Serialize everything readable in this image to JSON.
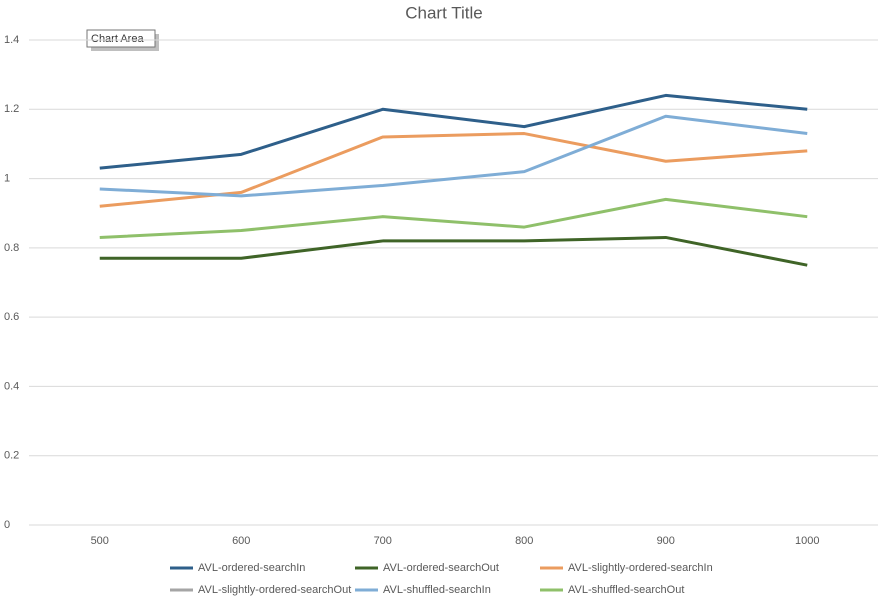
{
  "chart_data": {
    "type": "line",
    "title": "Chart Title",
    "tooltip": "Chart Area",
    "categories": [
      "500",
      "600",
      "700",
      "800",
      "900",
      "1000"
    ],
    "series": [
      {
        "name": "AVL-ordered-searchIn",
        "color": "#2e5f8a",
        "values": [
          1.03,
          1.07,
          1.2,
          1.15,
          1.24,
          1.2
        ]
      },
      {
        "name": "AVL-ordered-searchOut",
        "color": "#3f6427",
        "values": [
          0.77,
          0.77,
          0.82,
          0.82,
          0.83,
          0.75
        ]
      },
      {
        "name": "AVL-slightly-ordered-searchIn",
        "color": "#eb9c5f",
        "values": [
          0.92,
          0.96,
          1.12,
          1.13,
          1.05,
          1.08
        ]
      },
      {
        "name": "AVL-slightly-ordered-searchOut",
        "color": "#a5a5a5",
        "values": [
          null,
          null,
          null,
          null,
          null,
          null
        ]
      },
      {
        "name": "AVL-shuffled-searchIn",
        "color": "#7fadd6",
        "values": [
          0.97,
          0.95,
          0.98,
          1.02,
          1.18,
          1.13
        ]
      },
      {
        "name": "AVL-shuffled-searchOut",
        "color": "#8fc06a",
        "values": [
          0.83,
          0.85,
          0.89,
          0.86,
          0.94,
          0.89
        ]
      }
    ],
    "ylim": [
      0,
      1.4
    ],
    "yticks": [
      0,
      0.2,
      0.4,
      0.6,
      0.8,
      1,
      1.2,
      1.4
    ],
    "grid": true,
    "legend": "bottom"
  }
}
